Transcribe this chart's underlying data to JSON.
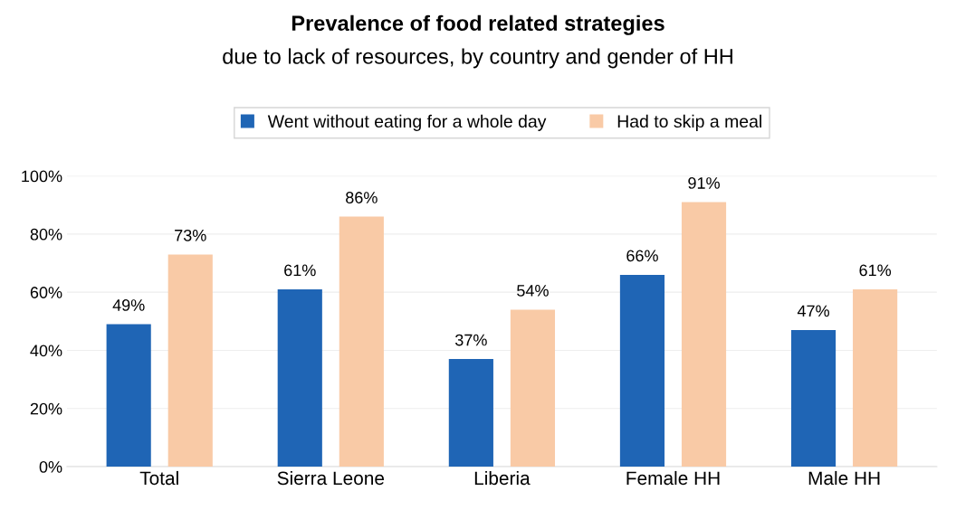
{
  "chart_data": {
    "type": "bar",
    "title": "Prevalence of food related strategies",
    "subtitle": "due to lack of resources, by country and gender of HH",
    "categories": [
      "Total",
      "Sierra Leone",
      "Liberia",
      "Female HH",
      "Male HH"
    ],
    "series": [
      {
        "name": "Went without eating for a whole day",
        "color": "#1f65b5",
        "values": [
          49,
          61,
          37,
          66,
          47
        ],
        "value_labels": [
          "49%",
          "61%",
          "37%",
          "66%",
          "47%"
        ]
      },
      {
        "name": "Had to skip a meal",
        "color": "#f9caa6",
        "values": [
          73,
          86,
          54,
          91,
          61
        ],
        "value_labels": [
          "73%",
          "86%",
          "54%",
          "91%",
          "61%"
        ]
      }
    ],
    "ylim": [
      0,
      100
    ],
    "yticks": [
      {
        "value": 0,
        "label": "0%"
      },
      {
        "value": 20,
        "label": "20%"
      },
      {
        "value": 40,
        "label": "40%"
      },
      {
        "value": 60,
        "label": "60%"
      },
      {
        "value": 80,
        "label": "80%"
      },
      {
        "value": 100,
        "label": "100%"
      }
    ],
    "grid": "y",
    "legend": "top"
  }
}
